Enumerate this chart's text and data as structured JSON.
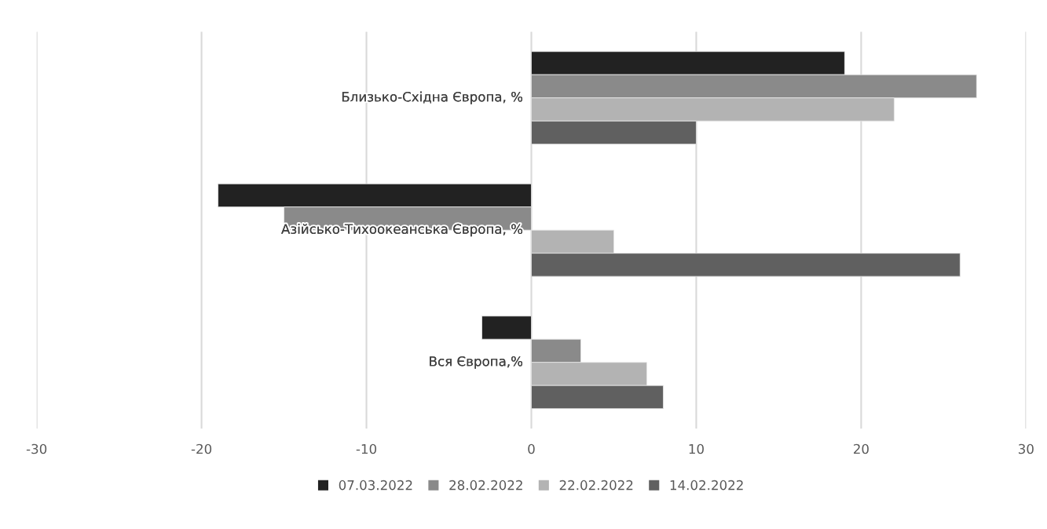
{
  "chart_data": {
    "type": "bar",
    "orientation": "horizontal",
    "categories": [
      "Близько-Східна Європа, %",
      "Азійсько-Тихоокеанська Європа, %",
      "Вся Європа,%"
    ],
    "series": [
      {
        "name": "07.03.2022",
        "color": "#222222",
        "values": [
          19,
          -19,
          -3
        ]
      },
      {
        "name": "28.02.2022",
        "color": "#8a8a8a",
        "values": [
          27,
          -15,
          3
        ]
      },
      {
        "name": "22.02.2022",
        "color": "#b3b3b3",
        "values": [
          22,
          5,
          7
        ]
      },
      {
        "name": "14.02.2022",
        "color": "#606060",
        "values": [
          10,
          26,
          8
        ]
      }
    ],
    "xlim": [
      -30,
      30
    ],
    "xticks": [
      -30,
      -20,
      -10,
      0,
      10,
      20,
      30
    ],
    "grid": "x",
    "legend": "bottom"
  }
}
